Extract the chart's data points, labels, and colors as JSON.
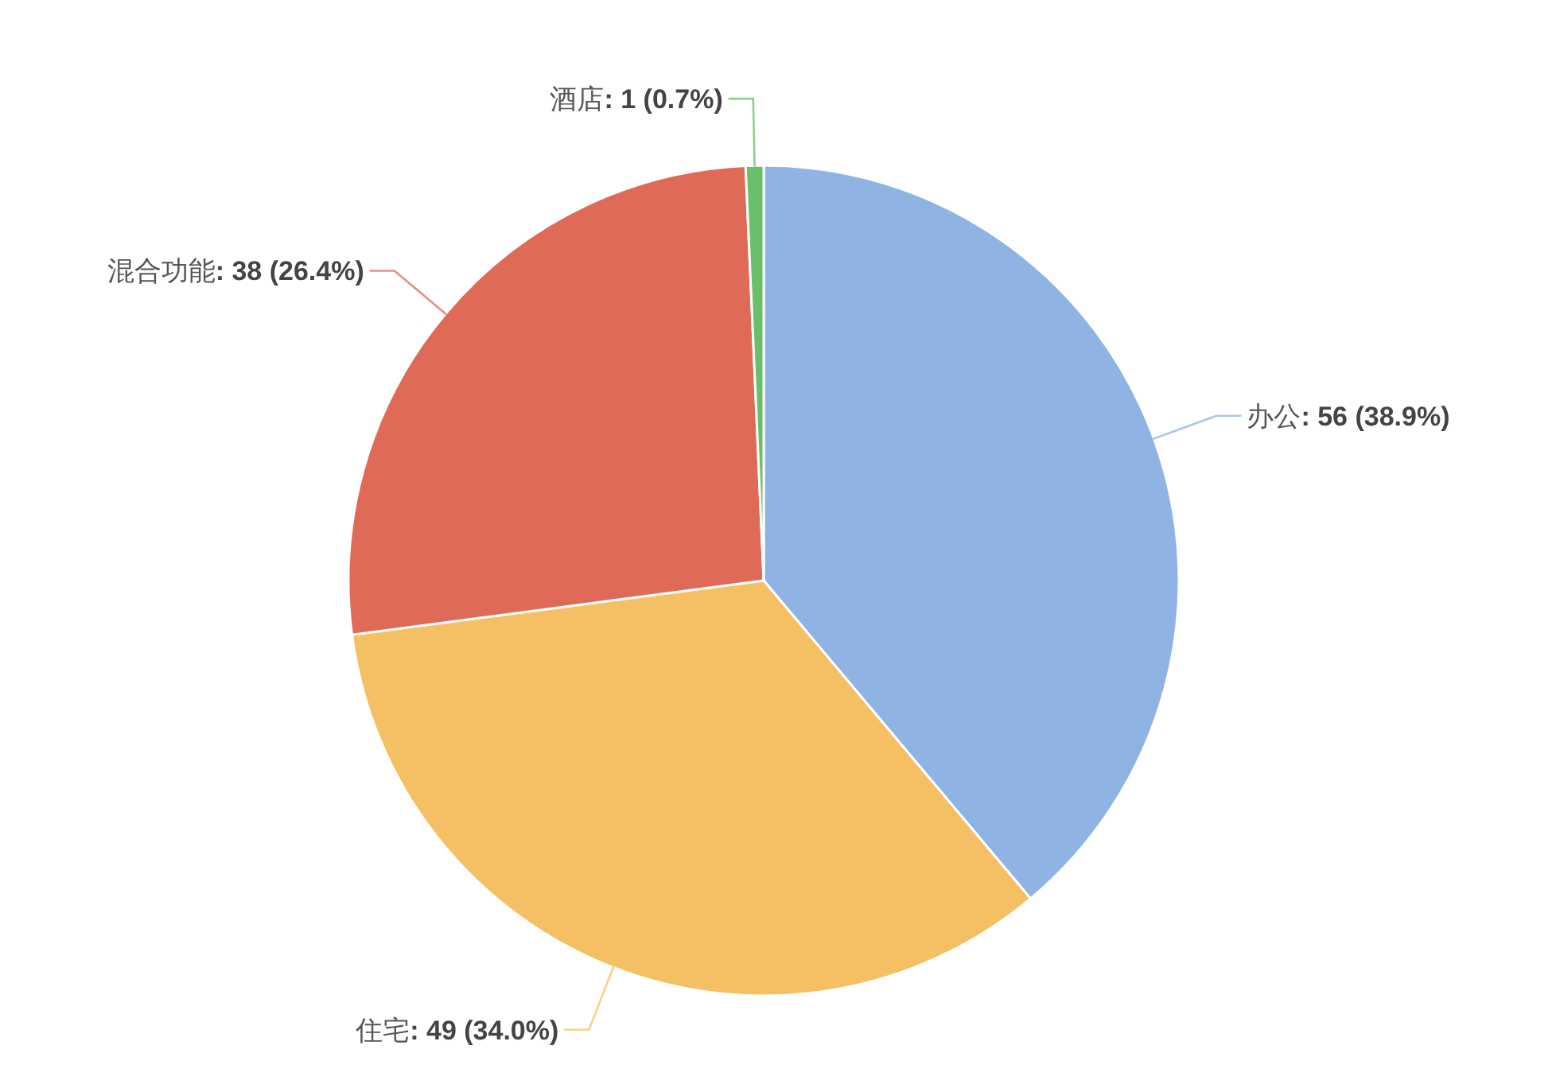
{
  "chart_data": {
    "type": "pie",
    "categories": [
      "办公",
      "住宅",
      "混合功能",
      "酒店"
    ],
    "values": [
      56,
      49,
      38,
      1
    ],
    "value_labels": [
      ": 56 (38.9%)",
      ": 49 (34.0%)",
      ": 38 (26.4%)",
      ": 1 (0.7%)"
    ],
    "colors": [
      "#8fb4e3",
      "#f4c063",
      "#e06a58",
      "#6abf69"
    ]
  }
}
